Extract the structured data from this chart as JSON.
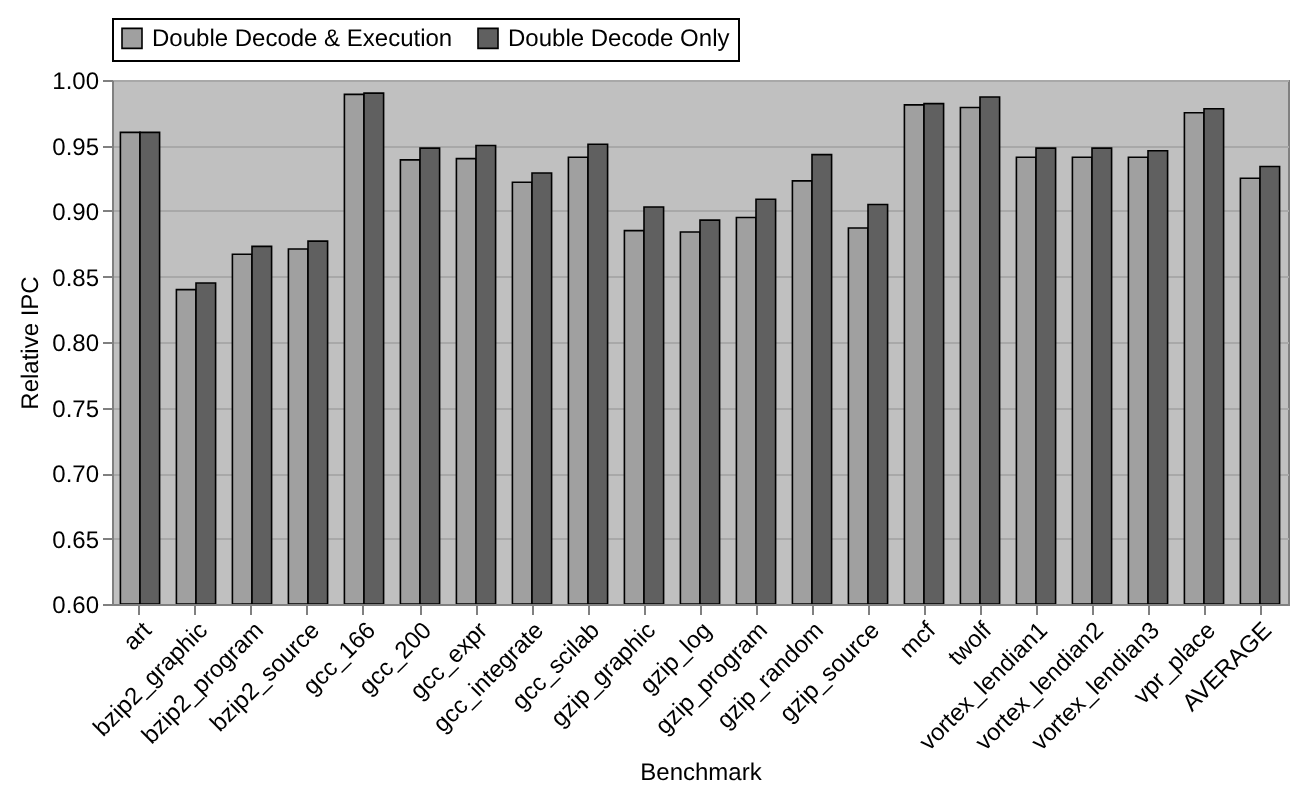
{
  "chart_data": {
    "type": "bar",
    "xlabel": "Benchmark",
    "ylabel": "Relative IPC",
    "categories": [
      "art",
      "bzip2_graphic",
      "bzip2_program",
      "bzip2_source",
      "gcc_166",
      "gcc_200",
      "gcc_expr",
      "gcc_integrate",
      "gcc_scilab",
      "gzip_graphic",
      "gzip_log",
      "gzip_program",
      "gzip_random",
      "gzip_source",
      "mcf",
      "twolf",
      "vortex_lendian1",
      "vortex_lendian2",
      "vortex_lendian3",
      "vpr_place",
      "AVERAGE"
    ],
    "series": [
      {
        "name": "Double Decode & Execution",
        "color": "#a0a0a0",
        "values": [
          0.96,
          0.84,
          0.867,
          0.871,
          0.989,
          0.939,
          0.94,
          0.922,
          0.941,
          0.885,
          0.884,
          0.895,
          0.923,
          0.887,
          0.981,
          0.979,
          0.941,
          0.941,
          0.941,
          0.975,
          0.925
        ]
      },
      {
        "name": "Double Decode Only",
        "color": "#606060",
        "values": [
          0.96,
          0.845,
          0.873,
          0.877,
          0.99,
          0.948,
          0.95,
          0.929,
          0.951,
          0.903,
          0.893,
          0.909,
          0.943,
          0.905,
          0.982,
          0.987,
          0.948,
          0.948,
          0.946,
          0.978,
          0.934
        ]
      }
    ],
    "ylim": [
      0.6,
      1.0
    ],
    "yticks": [
      {
        "value": 0.6,
        "label": "0.60"
      },
      {
        "value": 0.65,
        "label": "0.65"
      },
      {
        "value": 0.7,
        "label": "0.70"
      },
      {
        "value": 0.75,
        "label": "0.75"
      },
      {
        "value": 0.8,
        "label": "0.80"
      },
      {
        "value": 0.85,
        "label": "0.85"
      },
      {
        "value": 0.9,
        "label": "0.90"
      },
      {
        "value": 0.95,
        "label": "0.95"
      },
      {
        "value": 1.0,
        "label": "1.00"
      }
    ],
    "grid": "y",
    "legend": "top"
  }
}
